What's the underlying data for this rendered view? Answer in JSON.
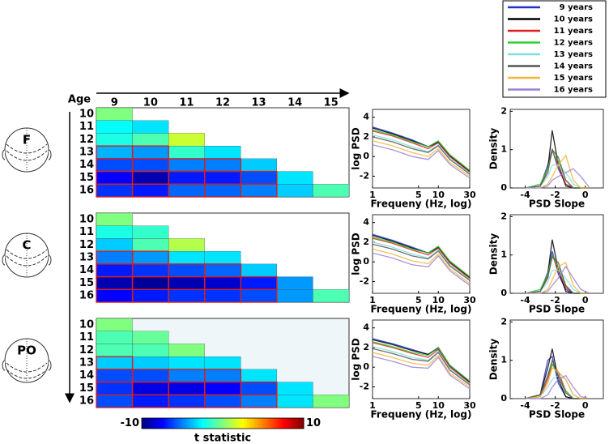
{
  "chart_data": [
    {
      "type": "heatmap",
      "region": "F",
      "xlabel": "Age",
      "categories": [
        "9",
        "10",
        "11",
        "12",
        "13",
        "14",
        "15"
      ],
      "ycategories": [
        "10",
        "11",
        "12",
        "13",
        "14",
        "15",
        "16"
      ],
      "clim": [
        -10,
        10
      ],
      "colorbar": {
        "ticks": [
          -10,
          10
        ],
        "label": "t statistic"
      },
      "values": [
        [
          0,
          null,
          null,
          null,
          null,
          null,
          null
        ],
        [
          -2.5,
          -3,
          null,
          null,
          null,
          null,
          null
        ],
        [
          -2,
          -1,
          1.5,
          null,
          null,
          null,
          null
        ],
        [
          -4,
          -4.5,
          -1.5,
          -3,
          null,
          null,
          null
        ],
        [
          -6,
          -6,
          -5,
          -5,
          -3.5,
          null,
          null
        ],
        [
          -7.5,
          -9,
          -7,
          -7,
          -6,
          -3,
          null
        ],
        [
          -6.5,
          -7,
          -5.5,
          -5.5,
          -5,
          -3.5,
          -1
        ]
      ],
      "significant": [
        [
          0,
          null,
          null,
          null,
          null,
          null,
          null
        ],
        [
          0,
          0,
          null,
          null,
          null,
          null,
          null
        ],
        [
          0,
          0,
          0,
          null,
          null,
          null,
          null
        ],
        [
          1,
          1,
          0,
          0,
          null,
          null,
          null
        ],
        [
          1,
          1,
          1,
          1,
          0,
          null,
          null
        ],
        [
          1,
          1,
          1,
          1,
          1,
          0,
          null
        ],
        [
          1,
          1,
          1,
          1,
          1,
          0,
          0
        ]
      ]
    },
    {
      "type": "line",
      "xscale": "log",
      "xlabel": "Frequeny (Hz, log)",
      "ylabel": "log PSD",
      "xlim": [
        1,
        30
      ],
      "xticks": [
        1,
        5,
        10,
        30
      ],
      "ylim": [
        -3.2,
        4.8
      ],
      "yticks": [
        -2,
        0,
        2,
        4
      ],
      "x": [
        1,
        2,
        4,
        7,
        10,
        15,
        30
      ],
      "series": [
        {
          "name": "9 years",
          "color": "#1f2fd0",
          "values": [
            3.0,
            2.4,
            1.7,
            1.0,
            1.4,
            0.0,
            -1.5
          ]
        },
        {
          "name": "10 years",
          "color": "#000000",
          "values": [
            2.9,
            2.3,
            1.6,
            1.0,
            1.5,
            0.1,
            -1.5
          ]
        },
        {
          "name": "11 years",
          "color": "#e02020",
          "values": [
            2.6,
            2.1,
            1.4,
            0.8,
            1.4,
            0.0,
            -1.6
          ]
        },
        {
          "name": "12 years",
          "color": "#2ed02e",
          "values": [
            2.7,
            2.2,
            1.5,
            1.0,
            1.6,
            0.2,
            -1.4
          ]
        },
        {
          "name": "13 years",
          "color": "#80dede",
          "values": [
            2.2,
            1.7,
            1.0,
            0.5,
            1.2,
            -0.2,
            -1.7
          ]
        },
        {
          "name": "14 years",
          "color": "#555555",
          "values": [
            2.0,
            1.5,
            0.8,
            0.4,
            1.1,
            -0.3,
            -1.8
          ]
        },
        {
          "name": "15 years",
          "color": "#f2b636",
          "values": [
            1.6,
            1.1,
            0.4,
            0.0,
            0.8,
            -0.6,
            -2.0
          ]
        },
        {
          "name": "16 years",
          "color": "#9a80d6",
          "values": [
            1.2,
            0.7,
            0.0,
            -0.3,
            0.6,
            -0.8,
            -2.2
          ]
        }
      ]
    },
    {
      "type": "density",
      "xlabel": "PSD Slope",
      "ylabel": "Density",
      "xlim": [
        -5,
        1.2
      ],
      "xticks": [
        -4,
        -2,
        0
      ],
      "ylim": [
        0,
        2.05
      ],
      "yticks": [
        0,
        1,
        2
      ],
      "x": [
        -4,
        -3,
        -2.5,
        -2.2,
        -1.8,
        -1.3,
        -0.8,
        -0.3,
        0.3
      ],
      "series": [
        {
          "values": [
            0,
            0.05,
            0.6,
            1.0,
            0.5,
            0.1,
            0,
            0,
            0
          ]
        },
        {
          "values": [
            0,
            0.05,
            0.5,
            1.5,
            0.6,
            0.05,
            0,
            0,
            0
          ]
        },
        {
          "values": [
            0,
            0.05,
            0.5,
            1.0,
            0.6,
            0.1,
            0,
            0,
            0
          ]
        },
        {
          "values": [
            0,
            0.1,
            0.5,
            0.95,
            0.7,
            0.2,
            0,
            0,
            0
          ]
        },
        {
          "values": [
            0,
            0.05,
            0.3,
            0.6,
            0.6,
            0.4,
            0.1,
            0,
            0
          ]
        },
        {
          "values": [
            0,
            0.05,
            0.4,
            1.0,
            0.8,
            0.2,
            0,
            0,
            0
          ]
        },
        {
          "values": [
            0,
            0,
            0.1,
            0.3,
            0.6,
            0.85,
            0.2,
            0,
            0
          ]
        },
        {
          "values": [
            0,
            0,
            0.05,
            0.2,
            0.3,
            0.4,
            0.5,
            0.3,
            0
          ]
        }
      ]
    },
    {
      "type": "heatmap",
      "region": "C",
      "ycategories": [
        "10",
        "11",
        "12",
        "13",
        "14",
        "15",
        "16"
      ],
      "values": [
        [
          0,
          null,
          null,
          null,
          null,
          null,
          null
        ],
        [
          -2,
          -1.5,
          null,
          null,
          null,
          null,
          null
        ],
        [
          -3.5,
          -1,
          1,
          null,
          null,
          null,
          null
        ],
        [
          -5,
          -4.5,
          -3,
          -3,
          null,
          null,
          null
        ],
        [
          -7,
          -6.5,
          -6,
          -5.5,
          -3.5,
          null,
          null
        ],
        [
          -9,
          -9.5,
          -9,
          -8.5,
          -7,
          -4.5,
          null
        ],
        [
          -7.5,
          -7,
          -6.5,
          -6.5,
          -6,
          -4.5,
          -1
        ]
      ],
      "significant": [
        [
          0,
          null,
          null,
          null,
          null,
          null,
          null
        ],
        [
          0,
          0,
          null,
          null,
          null,
          null,
          null
        ],
        [
          0,
          0,
          0,
          null,
          null,
          null,
          null
        ],
        [
          1,
          1,
          0,
          0,
          null,
          null,
          null
        ],
        [
          1,
          1,
          1,
          1,
          0,
          null,
          null
        ],
        [
          1,
          1,
          1,
          1,
          1,
          0,
          null
        ],
        [
          1,
          1,
          1,
          1,
          1,
          0,
          0
        ]
      ]
    },
    {
      "type": "line",
      "xscale": "log",
      "xlabel": "Frequeny (Hz, log)",
      "ylabel": "log PSD",
      "xlim": [
        1,
        30
      ],
      "xticks": [
        1,
        5,
        10,
        30
      ],
      "ylim": [
        -3.2,
        4.8
      ],
      "yticks": [
        -2,
        0,
        2,
        4
      ],
      "x": [
        1,
        2,
        4,
        7,
        10,
        15,
        30
      ],
      "series": [
        {
          "values": [
            2.8,
            2.2,
            1.5,
            0.9,
            1.4,
            -0.1,
            -1.6
          ]
        },
        {
          "values": [
            2.7,
            2.1,
            1.4,
            0.9,
            1.5,
            0.0,
            -1.6
          ]
        },
        {
          "values": [
            2.4,
            1.9,
            1.2,
            0.7,
            1.4,
            -0.1,
            -1.7
          ]
        },
        {
          "values": [
            2.5,
            2.0,
            1.3,
            0.9,
            1.6,
            0.1,
            -1.5
          ]
        },
        {
          "values": [
            2.0,
            1.5,
            0.8,
            0.4,
            1.2,
            -0.3,
            -1.8
          ]
        },
        {
          "values": [
            1.8,
            1.3,
            0.6,
            0.3,
            1.1,
            -0.4,
            -1.9
          ]
        },
        {
          "values": [
            1.3,
            0.8,
            0.1,
            -0.2,
            0.8,
            -0.7,
            -2.2
          ]
        },
        {
          "values": [
            0.9,
            0.4,
            -0.3,
            -0.5,
            0.6,
            -0.9,
            -2.4
          ]
        }
      ]
    },
    {
      "type": "density",
      "xlabel": "PSD Slope",
      "ylabel": "Density",
      "xlim": [
        -5,
        1.2
      ],
      "xticks": [
        -4,
        -2,
        0
      ],
      "ylim": [
        0,
        2.05
      ],
      "yticks": [
        0,
        1,
        2
      ],
      "x": [
        -4,
        -3,
        -2.5,
        -2.2,
        -1.8,
        -1.3,
        -0.8,
        -0.3,
        0.3
      ],
      "series": [
        {
          "values": [
            0,
            0.05,
            0.55,
            1.1,
            0.5,
            0.1,
            0,
            0,
            0
          ]
        },
        {
          "values": [
            0,
            0.05,
            0.5,
            1.4,
            0.6,
            0.05,
            0,
            0,
            0
          ]
        },
        {
          "values": [
            0,
            0.05,
            0.45,
            1.0,
            0.6,
            0.15,
            0,
            0,
            0
          ]
        },
        {
          "values": [
            0,
            0.1,
            0.5,
            1.0,
            0.7,
            0.2,
            0,
            0,
            0
          ]
        },
        {
          "values": [
            0,
            0.05,
            0.3,
            0.6,
            0.6,
            0.4,
            0.1,
            0,
            0
          ]
        },
        {
          "values": [
            0,
            0.05,
            0.4,
            0.95,
            0.8,
            0.2,
            0,
            0,
            0
          ]
        },
        {
          "values": [
            0,
            0,
            0.1,
            0.35,
            0.7,
            0.8,
            0.2,
            0,
            0
          ]
        },
        {
          "values": [
            0,
            0,
            0.05,
            0.2,
            0.4,
            0.7,
            0.4,
            0.1,
            0
          ]
        }
      ]
    },
    {
      "type": "heatmap",
      "region": "PO",
      "background": "#eef6f9",
      "ycategories": [
        "10",
        "11",
        "12",
        "13",
        "14",
        "15",
        "16"
      ],
      "values": [
        [
          0,
          null,
          null,
          null,
          null,
          null,
          null
        ],
        [
          -1,
          -0.5,
          null,
          null,
          null,
          null,
          null
        ],
        [
          -1,
          -1,
          0,
          null,
          null,
          null,
          null
        ],
        [
          -3.5,
          -3.5,
          -3,
          -3,
          null,
          null,
          null
        ],
        [
          -6,
          -6,
          -5,
          -5,
          -3,
          null,
          null
        ],
        [
          -6.5,
          -8,
          -8,
          -7.5,
          -6,
          -3,
          null
        ],
        [
          -6,
          -7,
          -6.5,
          -6,
          -5,
          -3,
          0
        ]
      ],
      "significant": [
        [
          0,
          null,
          null,
          null,
          null,
          null,
          null
        ],
        [
          0,
          0,
          null,
          null,
          null,
          null,
          null
        ],
        [
          0,
          0,
          0,
          null,
          null,
          null,
          null
        ],
        [
          1,
          0,
          0,
          0,
          null,
          null,
          null
        ],
        [
          1,
          1,
          1,
          1,
          0,
          null,
          null
        ],
        [
          1,
          1,
          1,
          1,
          1,
          0,
          null
        ],
        [
          1,
          1,
          1,
          1,
          1,
          0,
          0
        ]
      ]
    },
    {
      "type": "line",
      "xscale": "log",
      "xlabel": "Frequeny (Hz, log)",
      "ylabel": "log PSD",
      "xlim": [
        1,
        30
      ],
      "xticks": [
        1,
        5,
        10,
        30
      ],
      "ylim": [
        -3.2,
        4.8
      ],
      "yticks": [
        -2,
        0,
        2,
        4
      ],
      "x": [
        1,
        2,
        4,
        7,
        10,
        15,
        30
      ],
      "series": [
        {
          "values": [
            2.9,
            2.4,
            1.8,
            1.3,
            1.9,
            0.1,
            -1.5
          ]
        },
        {
          "values": [
            2.8,
            2.3,
            1.7,
            1.3,
            2.0,
            0.2,
            -1.5
          ]
        },
        {
          "values": [
            2.5,
            2.0,
            1.4,
            1.0,
            1.8,
            0.0,
            -1.6
          ]
        },
        {
          "values": [
            2.6,
            2.1,
            1.5,
            1.2,
            2.0,
            0.2,
            -1.4
          ]
        },
        {
          "values": [
            2.1,
            1.6,
            1.0,
            0.7,
            1.6,
            -0.2,
            -1.7
          ]
        },
        {
          "values": [
            1.9,
            1.4,
            0.8,
            0.6,
            1.5,
            -0.3,
            -1.8
          ]
        },
        {
          "values": [
            1.5,
            1.0,
            0.4,
            0.2,
            1.2,
            -0.6,
            -2.0
          ]
        },
        {
          "values": [
            1.1,
            0.6,
            0.0,
            -0.1,
            1.0,
            -0.8,
            -2.2
          ]
        }
      ]
    },
    {
      "type": "density",
      "xlabel": "PSD Slope",
      "ylabel": "Density",
      "xlim": [
        -5,
        1.2
      ],
      "xticks": [
        -4,
        -2,
        0
      ],
      "ylim": [
        0,
        2.05
      ],
      "yticks": [
        0,
        1,
        2
      ],
      "x": [
        -4,
        -3,
        -2.5,
        -2.2,
        -1.8,
        -1.3,
        -0.8,
        -0.3,
        0.3
      ],
      "series": [
        {
          "values": [
            0,
            0.1,
            1.0,
            1.1,
            0.4,
            0.05,
            0,
            0,
            0
          ]
        },
        {
          "values": [
            0,
            0.1,
            0.8,
            1.3,
            0.5,
            0.05,
            0,
            0,
            0
          ]
        },
        {
          "values": [
            0,
            0.05,
            0.5,
            0.9,
            0.7,
            0.2,
            0,
            0,
            0
          ]
        },
        {
          "values": [
            0,
            0.1,
            0.6,
            0.9,
            0.6,
            0.2,
            0,
            0,
            0
          ]
        },
        {
          "values": [
            0,
            0.05,
            0.3,
            0.5,
            0.6,
            0.5,
            0.1,
            0,
            0
          ]
        },
        {
          "values": [
            0,
            0.1,
            0.6,
            1.0,
            0.6,
            0.15,
            0,
            0,
            0
          ]
        },
        {
          "values": [
            0,
            0.05,
            0.4,
            0.8,
            0.7,
            0.5,
            0.1,
            0,
            0
          ]
        },
        {
          "values": [
            0,
            0,
            0.1,
            0.3,
            0.5,
            0.6,
            0.3,
            0.05,
            0
          ]
        }
      ]
    }
  ]
}
